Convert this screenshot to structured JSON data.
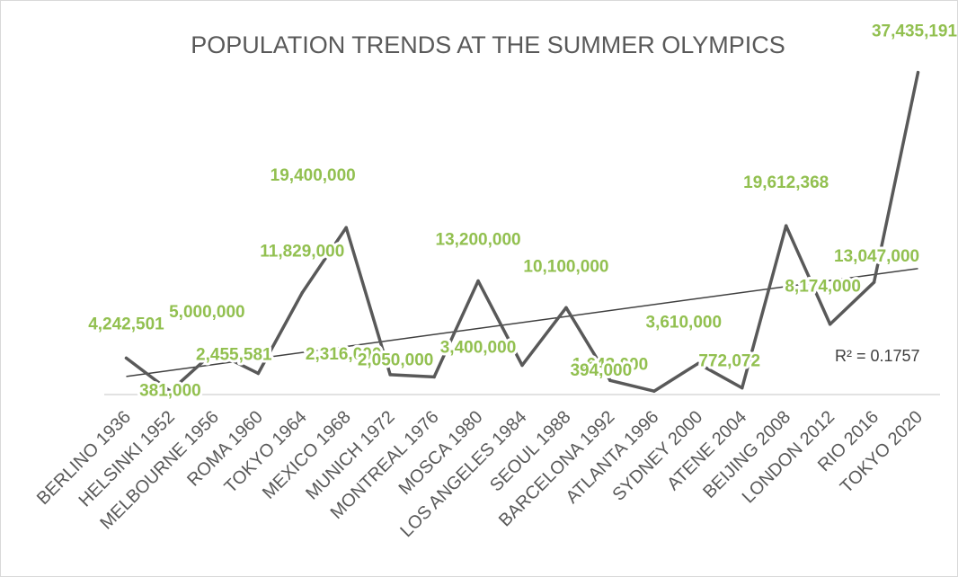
{
  "chart_data": {
    "type": "line",
    "title": "POPULATION TRENDS AT THE SUMMER OLYMPICS",
    "categories": [
      "BERLINO 1936",
      "HELSINKI 1952",
      "MELBOURNE 1956",
      "ROMA 1960",
      "TOKYO 1964",
      "MEXICO 1968",
      "MUNICH 1972",
      "MONTREAL 1976",
      "MOSCA 1980",
      "LOS ANGELES 1984",
      "SEOUL 1988",
      "BARCELONA 1992",
      "ATLANTA 1996",
      "SYDNEY 2000",
      "ATENE 2004",
      "BEIJING 2008",
      "LONDON 2012",
      "RIO 2016",
      "TOKYO 2020"
    ],
    "values": [
      4242501,
      381000,
      5000000,
      2455581,
      11829000,
      19400000,
      2316000,
      2050000,
      13200000,
      3400000,
      10100000,
      1643000,
      394000,
      3610000,
      772072,
      19612368,
      8174000,
      13047000,
      37435191
    ],
    "data_labels": [
      "4,242,501",
      "381,000",
      "5,000,000",
      "2,455,581",
      "11,829,000",
      "19,400,000",
      "2,316,000",
      "2,050,000",
      "13,200,000",
      "3,400,000",
      "10,100,000",
      "1,643,000",
      "394,000",
      "3,610,000",
      "772,072",
      "19,612,368",
      "8,174,000",
      "13,047,000",
      "37,435,191"
    ],
    "trendline": {
      "type": "linear",
      "r2_label": "R² = 0.1757"
    },
    "xlabel": "",
    "ylabel": "",
    "ylim": [
      0,
      40000000
    ],
    "grid": false,
    "colors": {
      "line": "#595959",
      "labels": "#92c050",
      "trend": "#404040",
      "axis": "#d9d9d9"
    }
  }
}
